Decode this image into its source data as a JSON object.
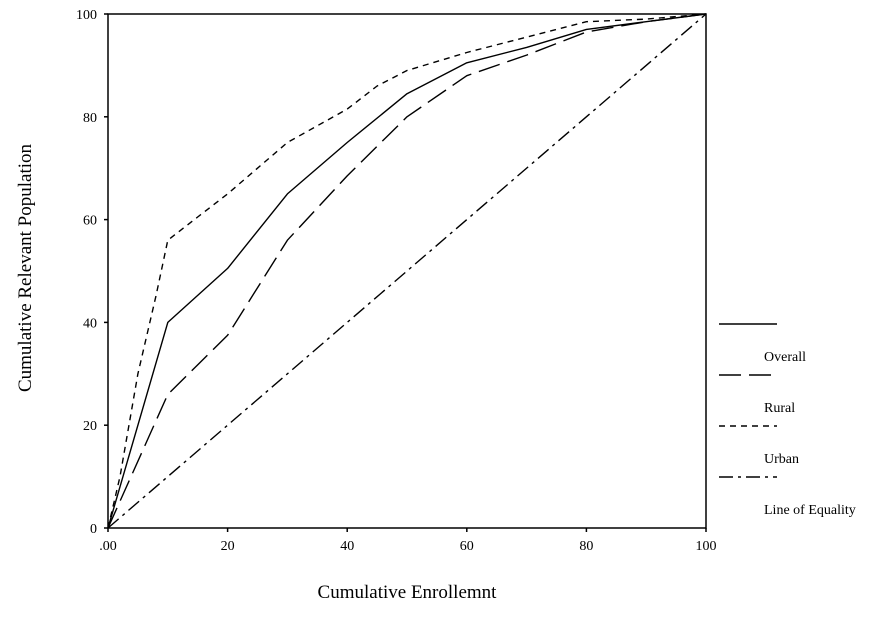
{
  "chart_data": {
    "type": "line",
    "title": "",
    "xlabel": "Cumulative Enrollemnt",
    "ylabel": "Cumulative Relevant Population",
    "xlim": [
      0,
      100
    ],
    "ylim": [
      0,
      100
    ],
    "x_ticks": [
      0,
      20,
      40,
      60,
      80,
      100
    ],
    "x_tick_labels": [
      ".00",
      "20",
      "40",
      "60",
      "80",
      "100"
    ],
    "y_ticks": [
      0,
      20,
      40,
      60,
      80,
      100
    ],
    "y_tick_labels": [
      "0",
      "20",
      "40",
      "60",
      "80",
      "100"
    ],
    "grid": false,
    "legend_position": "right",
    "series": [
      {
        "name": "Overall",
        "dash": "solid",
        "x": [
          0,
          10,
          20,
          30,
          40,
          50,
          60,
          70,
          80,
          90,
          100
        ],
        "y": [
          0,
          40,
          50.5,
          65,
          75,
          84.5,
          90.5,
          93.5,
          97,
          98.5,
          100
        ]
      },
      {
        "name": "Rural",
        "dash": "long-dash",
        "x": [
          0,
          10,
          20,
          30,
          40,
          50,
          60,
          70,
          80,
          90,
          100
        ],
        "y": [
          0,
          26,
          37.5,
          56,
          68.5,
          80,
          88,
          92,
          96.5,
          98.5,
          100
        ]
      },
      {
        "name": "Urban",
        "dash": "short-dash",
        "x": [
          0,
          2,
          5,
          8,
          10,
          15,
          20,
          25,
          30,
          40,
          45,
          50,
          60,
          70,
          80,
          90,
          100
        ],
        "y": [
          0,
          10,
          30,
          45,
          56,
          60.5,
          65,
          70,
          75,
          81.5,
          86,
          89,
          92.5,
          95.5,
          98.5,
          99,
          100
        ]
      },
      {
        "name": "Line of Equality",
        "dash": "dash-dot",
        "x": [
          0,
          100
        ],
        "y": [
          0,
          100
        ]
      }
    ]
  }
}
